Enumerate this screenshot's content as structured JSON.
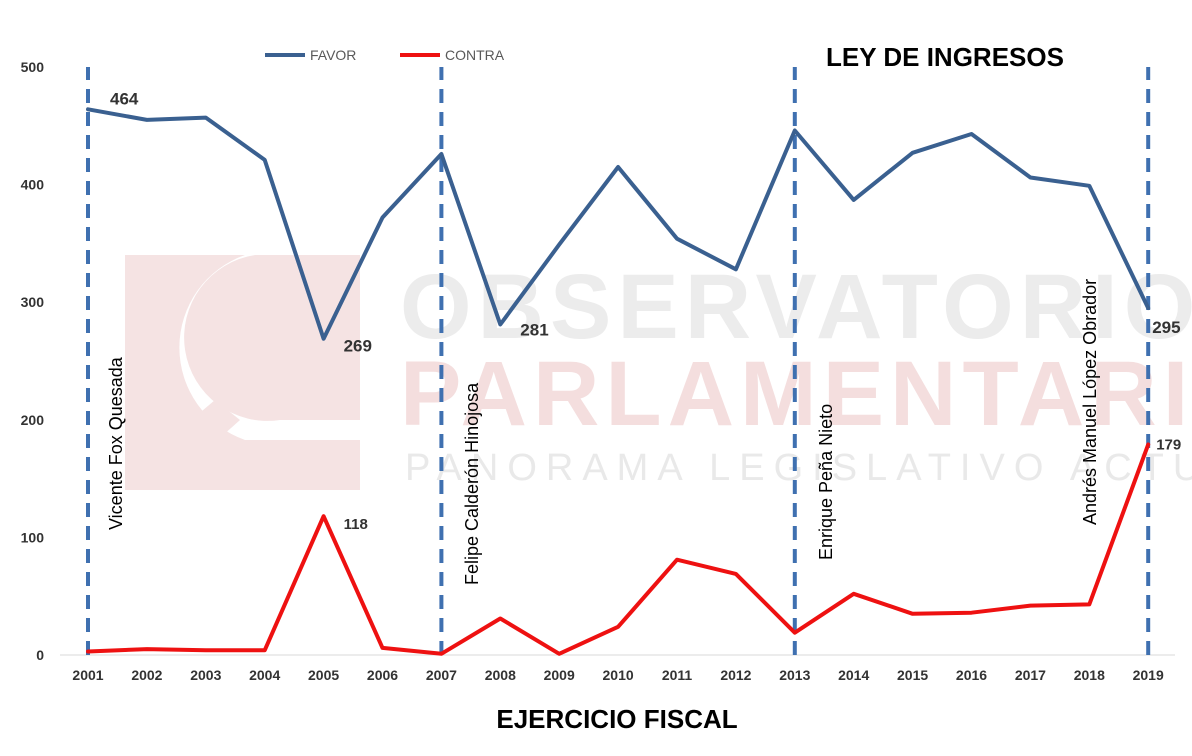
{
  "chart_data": {
    "type": "line",
    "title": "LEY DE INGRESOS",
    "xlabel": "EJERCICIO FISCAL",
    "ylabel": "",
    "ylim": [
      0,
      500
    ],
    "yticks": [
      0,
      100,
      200,
      300,
      400,
      500
    ],
    "grid": false,
    "legend_position": "top-left",
    "categories": [
      "2001",
      "2002",
      "2003",
      "2004",
      "2005",
      "2006",
      "2007",
      "2008",
      "2009",
      "2010",
      "2011",
      "2012",
      "2013",
      "2014",
      "2015",
      "2016",
      "2017",
      "2018",
      "2019"
    ],
    "series": [
      {
        "name": "FAVOR",
        "color": "#3a6090",
        "values": [
          464,
          455,
          457,
          421,
          269,
          372,
          426,
          281,
          349,
          415,
          354,
          328,
          446,
          387,
          427,
          443,
          406,
          399,
          295
        ]
      },
      {
        "name": "CONTRA",
        "color": "#ee1111",
        "values": [
          3,
          5,
          4,
          4,
          118,
          6,
          1,
          31,
          1,
          24,
          81,
          69,
          19,
          52,
          35,
          36,
          42,
          43,
          179
        ]
      }
    ],
    "data_labels": [
      {
        "series": "FAVOR",
        "category": "2001",
        "text": "464"
      },
      {
        "series": "FAVOR",
        "category": "2005",
        "text": "269"
      },
      {
        "series": "FAVOR",
        "category": "2008",
        "text": "281"
      },
      {
        "series": "FAVOR",
        "category": "2019",
        "text": "295"
      },
      {
        "series": "CONTRA",
        "category": "2005",
        "text": "118"
      },
      {
        "series": "CONTRA",
        "category": "2019",
        "text": "179"
      }
    ],
    "period_markers": [
      {
        "category": "2001",
        "label": "Vicente Fox Quesada"
      },
      {
        "category": "2007",
        "label": "Felipe Calderón Hinojosa"
      },
      {
        "category": "2013",
        "label": "Enrique Peña Nieto"
      },
      {
        "category": "2019",
        "label": "Andrés Manuel López Obrador"
      }
    ],
    "marker_color": "#3f70b0"
  },
  "watermark": {
    "line1": "OBSERVATORIO",
    "line2": "PARLAMENTARIO",
    "line3": "PANORAMA LEGISLATIVO ACTUAL",
    "icon": "observatorio-logo-icon"
  }
}
